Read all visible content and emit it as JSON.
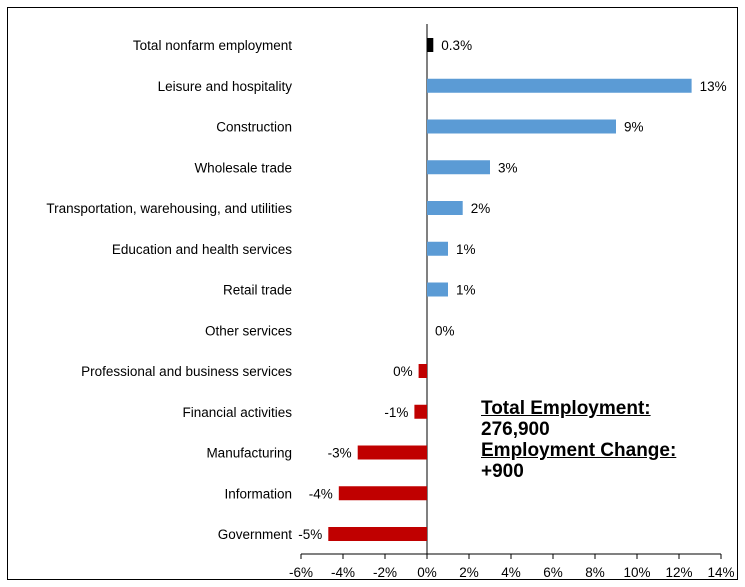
{
  "chart_data": {
    "type": "bar",
    "orientation": "horizontal",
    "categories": [
      "Total nonfarm employment",
      "Leisure and hospitality",
      "Construction",
      "Wholesale trade",
      "Transportation, warehousing, and utilities",
      "Education and health services",
      "Retail trade",
      "Other services",
      "Professional and business services",
      "Financial activities",
      "Manufacturing",
      "Information",
      "Government"
    ],
    "values": [
      0.3,
      12.6,
      9.0,
      3.0,
      1.7,
      1.0,
      1.0,
      0.0,
      -0.4,
      -0.6,
      -3.3,
      -4.2,
      -4.7
    ],
    "value_labels": [
      "0.3%",
      "13%",
      "9%",
      "3%",
      "2%",
      "1%",
      "1%",
      "0%",
      "0%",
      "-1%",
      "-3%",
      "-4%",
      "-5%"
    ],
    "colors": {
      "total": "#000000",
      "positive": "#5b9bd5",
      "negative": "#c00000"
    },
    "xlim": [
      -6,
      14
    ],
    "xticks": [
      "-6%",
      "-4%",
      "-2%",
      "0%",
      "2%",
      "4%",
      "6%",
      "8%",
      "10%",
      "12%",
      "14%"
    ],
    "xtick_values": [
      -6,
      -4,
      -2,
      0,
      2,
      4,
      6,
      8,
      10,
      12,
      14
    ],
    "grid": false,
    "legend": "none"
  },
  "annotation": {
    "total_label": "Total Employment:",
    "total_value": "276,900",
    "change_label": "Employment Change:",
    "change_value": "+900"
  }
}
